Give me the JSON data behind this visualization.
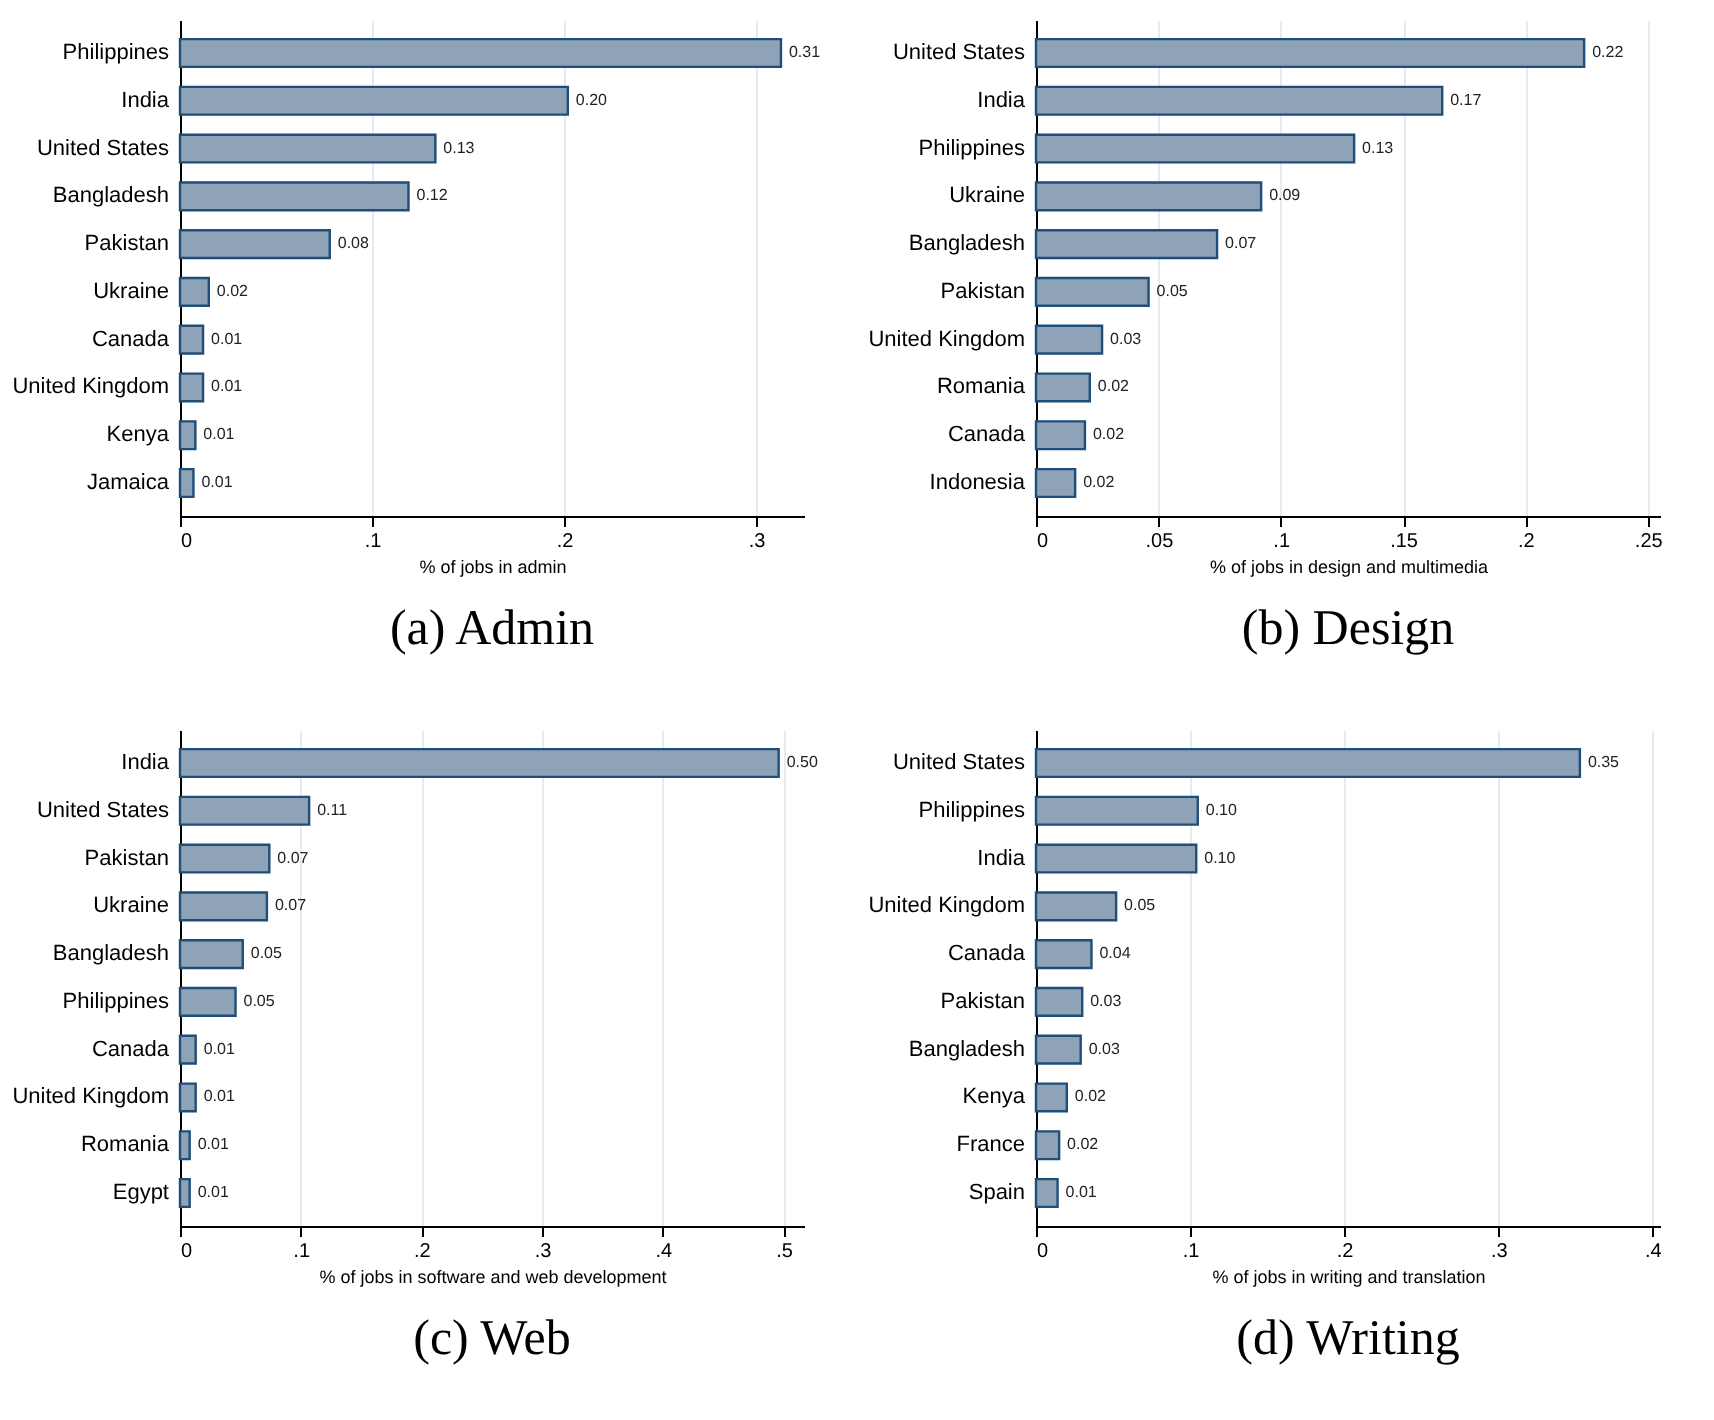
{
  "chart_data": [
    {
      "type": "bar",
      "orientation": "horizontal",
      "title": "(a) Admin",
      "xlabel": "% of jobs in admin",
      "categories": [
        "Philippines",
        "India",
        "United States",
        "Bangladesh",
        "Pakistan",
        "Ukraine",
        "Canada",
        "United Kingdom",
        "Kenya",
        "Jamaica"
      ],
      "values": [
        0.313,
        0.202,
        0.133,
        0.119,
        0.078,
        0.015,
        0.012,
        0.012,
        0.008,
        0.007
      ],
      "value_labels": [
        "0.31",
        "0.20",
        "0.13",
        "0.12",
        "0.08",
        "0.02",
        "0.01",
        "0.01",
        "0.01",
        "0.01"
      ],
      "color": "#8ea3b8",
      "xlim": [
        0,
        0.325
      ],
      "xticks": [
        {
          "value": 0,
          "label": "0"
        },
        {
          "value": 0.1,
          "label": ".1"
        },
        {
          "value": 0.2,
          "label": ".2"
        },
        {
          "value": 0.3,
          "label": ".3"
        }
      ],
      "grid": "x"
    },
    {
      "type": "bar",
      "orientation": "horizontal",
      "title": "(b) Design",
      "xlabel": "% of jobs in design and multimedia",
      "categories": [
        "United States",
        "India",
        "Philippines",
        "Ukraine",
        "Bangladesh",
        "Pakistan",
        "United Kingdom",
        "Romania",
        "Canada",
        "Indonesia"
      ],
      "values": [
        0.224,
        0.166,
        0.13,
        0.092,
        0.074,
        0.046,
        0.027,
        0.022,
        0.02,
        0.016
      ],
      "value_labels": [
        "0.22",
        "0.17",
        "0.13",
        "0.09",
        "0.07",
        "0.05",
        "0.03",
        "0.02",
        "0.02",
        "0.02"
      ],
      "color": "#8ea3b8",
      "xlim": [
        0,
        0.255
      ],
      "xticks": [
        {
          "value": 0,
          "label": "0"
        },
        {
          "value": 0.05,
          "label": ".05"
        },
        {
          "value": 0.1,
          "label": ".1"
        },
        {
          "value": 0.15,
          "label": ".15"
        },
        {
          "value": 0.2,
          "label": ".2"
        },
        {
          "value": 0.25,
          "label": ".25"
        }
      ],
      "grid": "x"
    },
    {
      "type": "bar",
      "orientation": "horizontal",
      "title": "(c) Web",
      "xlabel": "% of jobs in software and web development",
      "categories": [
        "India",
        "United States",
        "Pakistan",
        "Ukraine",
        "Bangladesh",
        "Philippines",
        "Canada",
        "United Kingdom",
        "Romania",
        "Egypt"
      ],
      "values": [
        0.496,
        0.107,
        0.074,
        0.072,
        0.052,
        0.046,
        0.013,
        0.013,
        0.008,
        0.008
      ],
      "value_labels": [
        "0.50",
        "0.11",
        "0.07",
        "0.07",
        "0.05",
        "0.05",
        "0.01",
        "0.01",
        "0.01",
        "0.01"
      ],
      "color": "#8ea3b8",
      "xlim": [
        0,
        0.517
      ],
      "xticks": [
        {
          "value": 0,
          "label": "0"
        },
        {
          "value": 0.1,
          "label": ".1"
        },
        {
          "value": 0.2,
          "label": ".2"
        },
        {
          "value": 0.3,
          "label": ".3"
        },
        {
          "value": 0.4,
          "label": ".4"
        },
        {
          "value": 0.5,
          "label": ".5"
        }
      ],
      "grid": "x"
    },
    {
      "type": "bar",
      "orientation": "horizontal",
      "title": "(d) Writing",
      "xlabel": "% of jobs in writing and translation",
      "categories": [
        "United States",
        "Philippines",
        "India",
        "United Kingdom",
        "Canada",
        "Pakistan",
        "Bangladesh",
        "Kenya",
        "France",
        "Spain"
      ],
      "values": [
        0.353,
        0.105,
        0.104,
        0.052,
        0.036,
        0.03,
        0.029,
        0.02,
        0.015,
        0.014
      ],
      "value_labels": [
        "0.35",
        "0.10",
        "0.10",
        "0.05",
        "0.04",
        "0.03",
        "0.03",
        "0.02",
        "0.02",
        "0.01"
      ],
      "color": "#8ea3b8",
      "xlim": [
        0,
        0.405
      ],
      "xticks": [
        {
          "value": 0,
          "label": "0"
        },
        {
          "value": 0.1,
          "label": ".1"
        },
        {
          "value": 0.2,
          "label": ".2"
        },
        {
          "value": 0.3,
          "label": ".3"
        },
        {
          "value": 0.4,
          "label": ".4"
        }
      ],
      "grid": "x"
    }
  ]
}
